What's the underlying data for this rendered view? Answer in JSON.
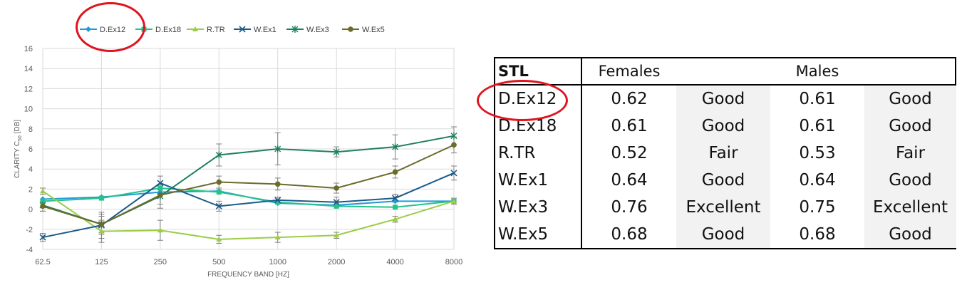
{
  "chart_data": {
    "type": "line",
    "xlabel": "FREQUENCY BAND [HZ]",
    "ylabel_prefix": "CLARITY C",
    "ylabel_subscript": "50",
    "ylabel_suffix": " [DB]",
    "categories": [
      "62.5",
      "125",
      "250",
      "500",
      "1000",
      "2000",
      "4000",
      "8000"
    ],
    "ylim": [
      -4,
      16
    ],
    "yticks": [
      "-4",
      "-2",
      "0",
      "2",
      "4",
      "6",
      "8",
      "10",
      "12",
      "14",
      "16"
    ],
    "grid": true,
    "legend_position": "top",
    "series": [
      {
        "name": "D.Ex12",
        "color": "#1f9ad6",
        "marker": "diamond",
        "values": [
          1.0,
          1.2,
          1.7,
          1.8,
          0.6,
          0.4,
          0.8,
          0.8
        ]
      },
      {
        "name": "D.Ex18",
        "color": "#26c28a",
        "marker": "square",
        "values": [
          0.8,
          1.1,
          2.1,
          1.7,
          0.7,
          0.3,
          0.2,
          0.8
        ]
      },
      {
        "name": "R.TR",
        "color": "#9ccc47",
        "marker": "triangle",
        "values": [
          1.8,
          -2.2,
          -2.1,
          -3.0,
          -2.8,
          -2.6,
          -1.0,
          0.8
        ]
      },
      {
        "name": "W.Ex1",
        "color": "#1a5a8a",
        "marker": "x",
        "values": [
          -2.8,
          -1.6,
          2.6,
          0.3,
          0.9,
          0.7,
          1.1,
          3.6
        ]
      },
      {
        "name": "W.Ex3",
        "color": "#1e7f5c",
        "marker": "star",
        "values": [
          0.4,
          -1.5,
          1.3,
          5.4,
          6.0,
          5.7,
          6.2,
          7.3
        ]
      },
      {
        "name": "W.Ex5",
        "color": "#6b6b2a",
        "marker": "circle",
        "values": [
          0.3,
          -1.5,
          1.4,
          2.7,
          2.5,
          2.1,
          3.7,
          6.4
        ]
      }
    ],
    "error_bars": {
      "W.Ex3": [
        0.6,
        1.0,
        1.2,
        1.1,
        1.6,
        0.5,
        1.2,
        0.9
      ],
      "W.Ex5": [
        0.5,
        0.8,
        0.9,
        0.6,
        0.6,
        0.5,
        0.6,
        0.8
      ],
      "R.TR": [
        0.3,
        1.1,
        1.0,
        0.4,
        0.5,
        0.3,
        0.3,
        0.3
      ],
      "W.Ex1": [
        0.4,
        1.3,
        0.7,
        0.5,
        0.3,
        0.5,
        0.4,
        0.7
      ]
    }
  },
  "table": {
    "header": {
      "label": "STL",
      "col1": "Females",
      "col2": "Males"
    },
    "rows": [
      {
        "name": "D.Ex12",
        "f_val": "0.62",
        "f_rating": "Good",
        "m_val": "0.61",
        "m_rating": "Good"
      },
      {
        "name": "D.Ex18",
        "f_val": "0.61",
        "f_rating": "Good",
        "m_val": "0.61",
        "m_rating": "Good"
      },
      {
        "name": "R.TR",
        "f_val": "0.52",
        "f_rating": "Fair",
        "m_val": "0.53",
        "m_rating": "Fair"
      },
      {
        "name": "W.Ex1",
        "f_val": "0.64",
        "f_rating": "Good",
        "m_val": "0.64",
        "m_rating": "Good"
      },
      {
        "name": "W.Ex3",
        "f_val": "0.76",
        "f_rating": "Excellent",
        "m_val": "0.75",
        "m_rating": "Excellent"
      },
      {
        "name": "W.Ex5",
        "f_val": "0.68",
        "f_rating": "Good",
        "m_val": "0.68",
        "m_rating": "Good"
      }
    ]
  },
  "highlight_color": "#e0141e"
}
